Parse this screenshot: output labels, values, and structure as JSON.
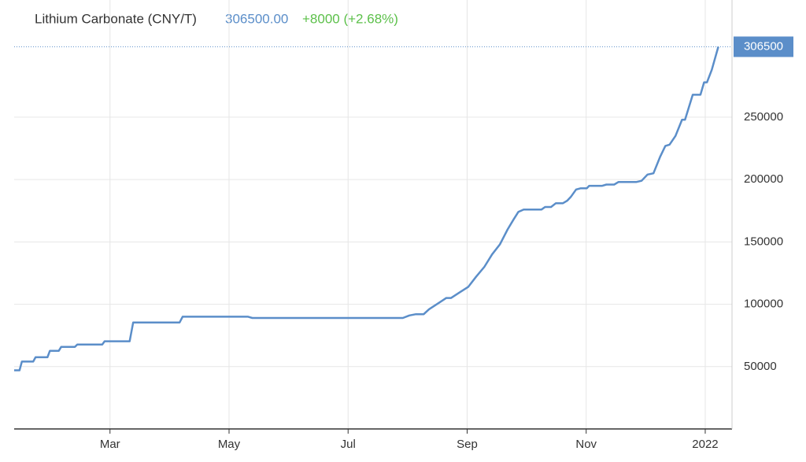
{
  "chart_data": {
    "type": "line",
    "title": "Lithium Carbonate (CNY/T)",
    "price": "306500.00",
    "change": "+8000 (+2.68%)",
    "x": [
      1.39,
      1.48,
      1.52,
      1.71,
      1.75,
      1.95,
      1.99,
      2.14,
      2.18,
      2.41,
      2.45,
      2.87,
      2.91,
      3.33,
      3.39,
      4.17,
      4.22,
      5.32,
      5.39,
      7.92,
      8.03,
      8.14,
      8.27,
      8.36,
      8.49,
      8.65,
      8.73,
      8.89,
      9.02,
      9.15,
      9.29,
      9.42,
      9.55,
      9.68,
      9.78,
      9.86,
      9.95,
      10.25,
      10.31,
      10.41,
      10.49,
      10.61,
      10.68,
      10.74,
      10.83,
      10.91,
      11.01,
      11.05,
      11.27,
      11.34,
      11.47,
      11.54,
      11.84,
      11.93,
      12.03,
      12.13,
      12.24,
      12.33,
      12.4,
      12.5,
      12.61,
      12.66,
      12.79,
      12.92,
      12.98,
      13.03,
      13.11,
      13.22
    ],
    "series": [
      {
        "name": "Lithium Carbonate",
        "color": "#5b8ec9",
        "values": [
          47000,
          47000,
          54000,
          54000,
          57500,
          57500,
          62700,
          62700,
          65800,
          65800,
          67700,
          67700,
          70300,
          70300,
          85400,
          85400,
          90000,
          90000,
          89000,
          89000,
          91000,
          92000,
          92000,
          96000,
          100000,
          105000,
          105000,
          110000,
          114000,
          122000,
          130000,
          140000,
          148000,
          160000,
          168000,
          174000,
          176000,
          176000,
          178000,
          178000,
          181000,
          181000,
          183000,
          186000,
          192000,
          193000,
          193000,
          195000,
          195000,
          196000,
          196000,
          198000,
          198000,
          199000,
          204000,
          205000,
          218000,
          227000,
          228000,
          235000,
          248000,
          248000,
          268000,
          268000,
          278000,
          278000,
          288000,
          306500
        ]
      }
    ],
    "xlim": [
      1.39,
      13.45
    ],
    "xticks": [
      {
        "value": 3,
        "label": "Mar"
      },
      {
        "value": 5,
        "label": "May"
      },
      {
        "value": 7,
        "label": "Jul"
      },
      {
        "value": 9,
        "label": "Sep"
      },
      {
        "value": 11,
        "label": "Nov"
      },
      {
        "value": 13,
        "label": "2022"
      }
    ],
    "ylim": [
      0,
      344000
    ],
    "yticks": [
      50000,
      100000,
      150000,
      200000,
      250000
    ],
    "grid": true
  }
}
